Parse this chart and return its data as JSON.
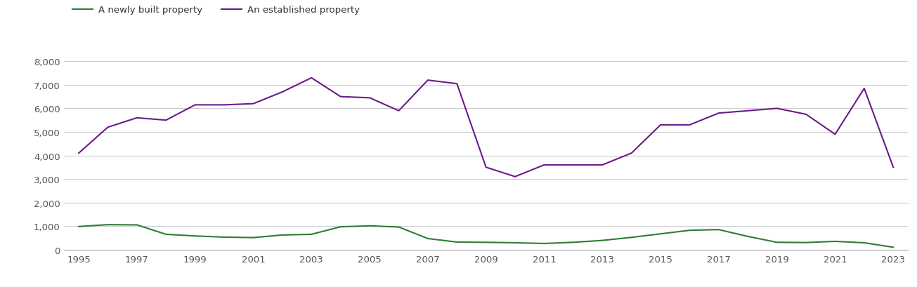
{
  "years": [
    1995,
    1996,
    1997,
    1998,
    1999,
    2000,
    2001,
    2002,
    2003,
    2004,
    2005,
    2006,
    2007,
    2008,
    2009,
    2010,
    2011,
    2012,
    2013,
    2014,
    2015,
    2016,
    2017,
    2018,
    2019,
    2020,
    2021,
    2022,
    2023
  ],
  "newly_built": [
    980,
    1060,
    1050,
    650,
    580,
    530,
    510,
    620,
    650,
    970,
    1010,
    960,
    470,
    320,
    310,
    290,
    260,
    310,
    390,
    520,
    670,
    820,
    850,
    560,
    310,
    300,
    350,
    290,
    100
  ],
  "established": [
    4100,
    5200,
    5600,
    5500,
    6150,
    6150,
    6200,
    6700,
    7300,
    6500,
    6450,
    5900,
    7200,
    7050,
    3500,
    3100,
    3600,
    3600,
    3600,
    4100,
    5300,
    5300,
    5800,
    5900,
    6000,
    5750,
    4900,
    6850,
    3500
  ],
  "newly_built_color": "#2d7d32",
  "established_color": "#6a1a8a",
  "legend_labels": [
    "A newly built property",
    "An established property"
  ],
  "ylim": [
    0,
    8800
  ],
  "yticks": [
    0,
    1000,
    2000,
    3000,
    4000,
    5000,
    6000,
    7000,
    8000
  ],
  "ytick_labels": [
    "0",
    "1,000",
    "2,000",
    "3,000",
    "4,000",
    "5,000",
    "6,000",
    "7,000",
    "8,000"
  ],
  "background_color": "#ffffff",
  "grid_color": "#cccccc",
  "line_width": 1.5,
  "tick_label_color": "#555555",
  "tick_fontsize": 9.5
}
